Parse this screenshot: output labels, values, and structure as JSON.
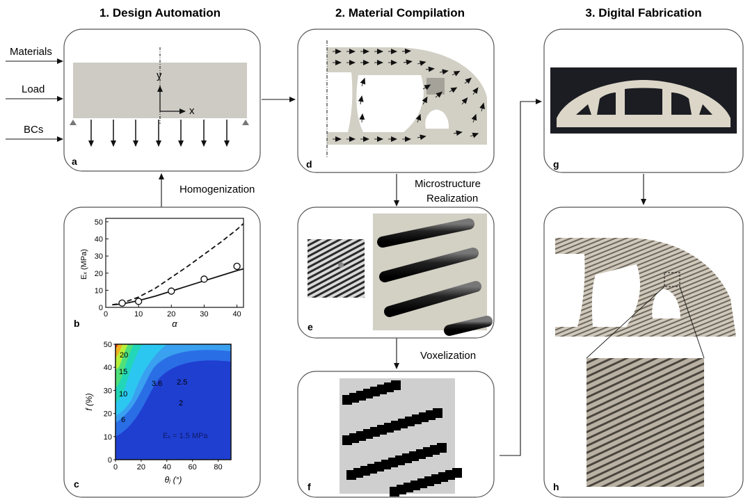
{
  "sections": {
    "design": "1. Design Automation",
    "material": "2. Material Compilation",
    "fabrication": "3. Digital Fabrication"
  },
  "inputs": {
    "materials": "Materials",
    "load": "Load",
    "bcs": "BCs"
  },
  "axes": {
    "x": "x",
    "y": "y"
  },
  "steps": {
    "homogenization": "Homogenization",
    "microstructure_line1": "Microstructure",
    "microstructure_line2": "Realization",
    "voxelization": "Voxelization"
  },
  "panel_letters": {
    "a": "a",
    "b": "b",
    "c": "c",
    "d": "d",
    "e": "e",
    "f": "f",
    "g": "g",
    "h": "h"
  },
  "chart_data": [
    {
      "type": "line",
      "xlabel": "α",
      "ylabel": "Eₓ (MPa)",
      "xlim": [
        0,
        42
      ],
      "ylim": [
        0,
        52
      ],
      "xticks": [
        "0",
        "10",
        "20",
        "30",
        "40"
      ],
      "yticks": [
        "0",
        "10",
        "20",
        "30",
        "40",
        "50"
      ],
      "series": [
        {
          "style": "dashed",
          "x": [
            2,
            5,
            10,
            15,
            20,
            25,
            30,
            35,
            40,
            42
          ],
          "y": [
            1.5,
            2.5,
            6,
            11,
            17.5,
            24,
            31,
            38,
            45.5,
            49
          ]
        },
        {
          "style": "solid",
          "x": [
            2,
            5,
            10,
            15,
            20,
            25,
            30,
            35,
            40,
            42
          ],
          "y": [
            1.5,
            2,
            4,
            6.5,
            9.5,
            12.5,
            15.5,
            18.5,
            21.5,
            22.5
          ]
        },
        {
          "style": "markers",
          "x": [
            5,
            10,
            20,
            30,
            40
          ],
          "y": [
            2.5,
            3.5,
            9.5,
            16.5,
            24
          ]
        }
      ]
    },
    {
      "type": "heatmap",
      "xlabel": "θⱼ (°)",
      "ylabel": "f (%)",
      "xlim": [
        0,
        90
      ],
      "ylim": [
        0,
        50
      ],
      "xticks": [
        "0",
        "20",
        "40",
        "60",
        "80"
      ],
      "yticks": [
        "0",
        "10",
        "20",
        "30",
        "40",
        "50"
      ],
      "contour_labels": [
        "20",
        "15",
        "10",
        "6",
        "3.6",
        "2.5",
        "2",
        "Eₓ = 1.5 MPa"
      ]
    }
  ]
}
